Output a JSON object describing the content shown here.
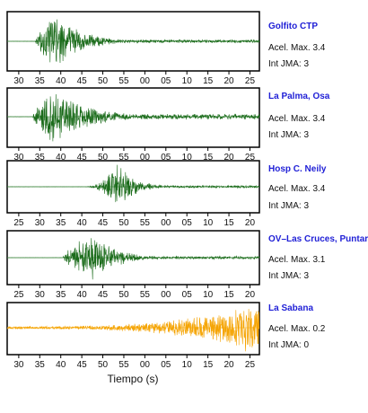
{
  "colors": {
    "trace_normal": "#1a6b1a",
    "trace_highlight": "#f5a300",
    "station_text": "#1f1fd6",
    "baseline": "#6fae6f"
  },
  "chart_data": {
    "type": "line",
    "xlabel": "Tiempo (s)",
    "panels": [
      {
        "station": "Golfito CTP",
        "acel_label": "Acel. Max. 3.4",
        "int_label": "Int JMA: 3",
        "x_ticks": [
          "30",
          "35",
          "40",
          "45",
          "50",
          "55",
          "00",
          "05",
          "10",
          "15",
          "20",
          "25"
        ],
        "trace_color": "normal",
        "envelope": {
          "onset": 0.11,
          "peak": 0.19,
          "decay": 0.16,
          "peak_amp": 1.0,
          "coda": 0.06,
          "rise": "fast"
        }
      },
      {
        "station": "La Palma, Osa",
        "acel_label": "Acel. Max. 3.4",
        "int_label": "Int JMA: 3",
        "x_ticks": [
          "30",
          "35",
          "40",
          "45",
          "50",
          "55",
          "00",
          "05",
          "10",
          "15",
          "20",
          "25"
        ],
        "trace_color": "normal",
        "envelope": {
          "onset": 0.1,
          "peak": 0.18,
          "decay": 0.22,
          "peak_amp": 1.0,
          "coda": 0.1,
          "rise": "fast"
        }
      },
      {
        "station": "Hosp C. Neily",
        "acel_label": "Acel. Max. 3.4",
        "int_label": "Int JMA: 3",
        "x_ticks": [
          "25",
          "30",
          "35",
          "40",
          "45",
          "50",
          "55",
          "00",
          "05",
          "10",
          "15",
          "20"
        ],
        "trace_color": "normal",
        "envelope": {
          "onset": 0.3,
          "peak": 0.44,
          "decay": 0.1,
          "peak_amp": 1.0,
          "coda": 0.05,
          "rise": "slow"
        }
      },
      {
        "station": "OV–Las Cruces, Puntarenas",
        "acel_label": "Acel. Max. 3.1",
        "int_label": "Int JMA: 3",
        "x_ticks": [
          "25",
          "30",
          "35",
          "40",
          "45",
          "50",
          "55",
          "00",
          "05",
          "10",
          "15",
          "20"
        ],
        "trace_color": "normal",
        "envelope": {
          "onset": 0.22,
          "peak": 0.34,
          "decay": 0.14,
          "peak_amp": 1.0,
          "coda": 0.06,
          "rise": "fast"
        }
      },
      {
        "station": "La Sabana",
        "acel_label": "Acel. Max. 0.2",
        "int_label": "Int JMA: 0",
        "x_ticks": [
          "30",
          "35",
          "40",
          "45",
          "50",
          "55",
          "00",
          "05",
          "10",
          "15",
          "20",
          "25"
        ],
        "trace_color": "highlight",
        "envelope": {
          "onset": 0.0,
          "peak": 0.97,
          "decay": 0.5,
          "peak_amp": 1.0,
          "coda": 0.08,
          "rise": "growing"
        }
      }
    ]
  }
}
